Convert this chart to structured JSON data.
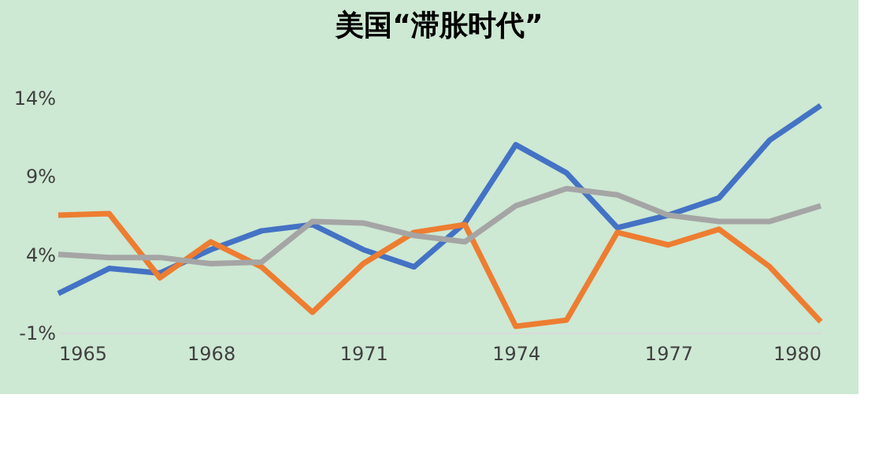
{
  "chart_data": {
    "type": "line",
    "title": "美国“滞胀时代”",
    "x": [
      1965,
      1966,
      1967,
      1968,
      1969,
      1970,
      1971,
      1972,
      1973,
      1974,
      1975,
      1976,
      1977,
      1978,
      1979,
      1980
    ],
    "series": [
      {
        "color": "#4472c4",
        "values": [
          1.5,
          3.1,
          2.8,
          4.3,
          5.5,
          5.9,
          4.3,
          3.2,
          6.0,
          11.0,
          9.2,
          5.7,
          6.5,
          7.6,
          11.3,
          13.5
        ]
      },
      {
        "color": "#ed7d31",
        "values": [
          6.5,
          6.6,
          2.5,
          4.8,
          3.2,
          0.3,
          3.4,
          5.4,
          5.9,
          -0.6,
          -0.2,
          5.4,
          4.6,
          5.6,
          3.2,
          -0.3
        ]
      },
      {
        "color": "#a5a5a5",
        "values": [
          4.0,
          3.8,
          3.8,
          3.4,
          3.5,
          6.1,
          6.0,
          5.2,
          4.8,
          7.1,
          8.2,
          7.8,
          6.5,
          6.1,
          6.1,
          7.1
        ]
      }
    ],
    "xlim": [
      1965,
      1980
    ],
    "xticks": [
      1965,
      1968,
      1971,
      1974,
      1977,
      1980
    ],
    "ylim": [
      -1,
      14
    ],
    "yticks": [
      {
        "value": -1,
        "label": "-1%"
      },
      {
        "value": 4,
        "label": "4%"
      },
      {
        "value": 9,
        "label": "9%"
      },
      {
        "value": 14,
        "label": "14%"
      }
    ],
    "grid": false,
    "marker": "none",
    "line_style": "solid"
  }
}
